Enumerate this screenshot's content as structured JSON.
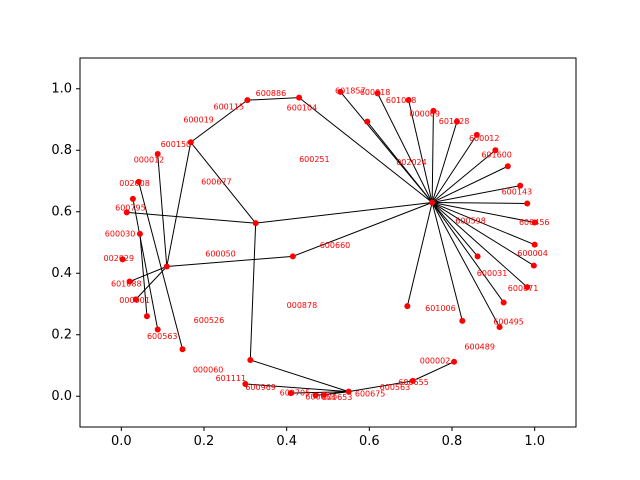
{
  "chart_data": {
    "type": "network",
    "xlim": [
      -0.1,
      1.1
    ],
    "ylim": [
      -0.1,
      1.1
    ],
    "x_ticks": [
      "0.0",
      "0.2",
      "0.4",
      "0.6",
      "0.8",
      "1.0"
    ],
    "y_ticks": [
      "0.0",
      "0.2",
      "0.4",
      "0.6",
      "0.8",
      "1.0"
    ],
    "grid": false,
    "node_color": "#ff0000",
    "edge_color": "#000000",
    "label_color": "#ff0000",
    "nodes": [
      {
        "id": "hub",
        "x": 0.752,
        "y": 0.63
      },
      {
        "id": "nA",
        "x": 0.325,
        "y": 0.563
      },
      {
        "id": "nB",
        "x": 0.168,
        "y": 0.826
      },
      {
        "id": "nC",
        "x": 0.305,
        "y": 0.963
      },
      {
        "id": "nD",
        "x": 0.43,
        "y": 0.971
      },
      {
        "id": "nE",
        "x": 0.11,
        "y": 0.422
      },
      {
        "id": "nF",
        "x": 0.042,
        "y": 0.697
      },
      {
        "id": "nG",
        "x": 0.088,
        "y": 0.788
      },
      {
        "id": "nH",
        "x": 0.013,
        "y": 0.598
      },
      {
        "id": "nI",
        "x": 0.028,
        "y": 0.642
      },
      {
        "id": "nJ",
        "x": 0.045,
        "y": 0.528
      },
      {
        "id": "nK",
        "x": 0.003,
        "y": 0.445
      },
      {
        "id": "nL",
        "x": 0.02,
        "y": 0.373
      },
      {
        "id": "nM",
        "x": 0.035,
        "y": 0.315
      },
      {
        "id": "nN",
        "x": 0.062,
        "y": 0.26
      },
      {
        "id": "nO",
        "x": 0.088,
        "y": 0.217
      },
      {
        "id": "nP",
        "x": 0.148,
        "y": 0.153
      },
      {
        "id": "nQ",
        "x": 0.415,
        "y": 0.455
      },
      {
        "id": "nR",
        "x": 0.312,
        "y": 0.118
      },
      {
        "id": "nS",
        "x": 0.55,
        "y": 0.015
      },
      {
        "id": "nT",
        "x": 0.3,
        "y": 0.04
      },
      {
        "id": "nU",
        "x": 0.41,
        "y": 0.01
      },
      {
        "id": "nV",
        "x": 0.47,
        "y": 0.003
      },
      {
        "id": "nW",
        "x": 0.49,
        "y": 0.005
      },
      {
        "id": "nX",
        "x": 0.705,
        "y": 0.05
      },
      {
        "id": "nY",
        "x": 0.805,
        "y": 0.112
      },
      {
        "id": "n1",
        "x": 0.53,
        "y": 0.99
      },
      {
        "id": "n2",
        "x": 0.595,
        "y": 0.893
      },
      {
        "id": "n3",
        "x": 0.62,
        "y": 0.985
      },
      {
        "id": "n4",
        "x": 0.695,
        "y": 0.963
      },
      {
        "id": "n5",
        "x": 0.755,
        "y": 0.928
      },
      {
        "id": "n6",
        "x": 0.812,
        "y": 0.893
      },
      {
        "id": "n7",
        "x": 0.86,
        "y": 0.85
      },
      {
        "id": "n8",
        "x": 0.905,
        "y": 0.8
      },
      {
        "id": "n9",
        "x": 0.935,
        "y": 0.748
      },
      {
        "id": "n10",
        "x": 0.965,
        "y": 0.685
      },
      {
        "id": "n11",
        "x": 0.982,
        "y": 0.627
      },
      {
        "id": "n12",
        "x": 1.0,
        "y": 0.565
      },
      {
        "id": "n13",
        "x": 1.0,
        "y": 0.493
      },
      {
        "id": "n14",
        "x": 0.998,
        "y": 0.425
      },
      {
        "id": "n15",
        "x": 0.982,
        "y": 0.355
      },
      {
        "id": "n16",
        "x": 0.925,
        "y": 0.305
      },
      {
        "id": "n17",
        "x": 0.915,
        "y": 0.225
      },
      {
        "id": "n18",
        "x": 0.862,
        "y": 0.455
      },
      {
        "id": "n19",
        "x": 0.825,
        "y": 0.245
      },
      {
        "id": "n20",
        "x": 0.692,
        "y": 0.293
      }
    ],
    "edges": [
      [
        "hub",
        "nA"
      ],
      [
        "hub",
        "nQ"
      ],
      [
        "hub",
        "n1"
      ],
      [
        "hub",
        "n2"
      ],
      [
        "hub",
        "n3"
      ],
      [
        "hub",
        "n4"
      ],
      [
        "hub",
        "n5"
      ],
      [
        "hub",
        "n6"
      ],
      [
        "hub",
        "n7"
      ],
      [
        "hub",
        "n8"
      ],
      [
        "hub",
        "n9"
      ],
      [
        "hub",
        "n10"
      ],
      [
        "hub",
        "n11"
      ],
      [
        "hub",
        "n12"
      ],
      [
        "hub",
        "n13"
      ],
      [
        "hub",
        "n14"
      ],
      [
        "hub",
        "n15"
      ],
      [
        "hub",
        "n16"
      ],
      [
        "hub",
        "n17"
      ],
      [
        "hub",
        "n18"
      ],
      [
        "hub",
        "n19"
      ],
      [
        "hub",
        "n20"
      ],
      [
        "nA",
        "nB"
      ],
      [
        "nA",
        "nH"
      ],
      [
        "nA",
        "nR"
      ],
      [
        "nB",
        "nC"
      ],
      [
        "nC",
        "nD"
      ],
      [
        "nD",
        "hub"
      ],
      [
        "nB",
        "nE"
      ],
      [
        "nE",
        "nG"
      ],
      [
        "nE",
        "nM"
      ],
      [
        "nE",
        "nL"
      ],
      [
        "nE",
        "nQ"
      ],
      [
        "nF",
        "nP"
      ],
      [
        "nI",
        "nO"
      ],
      [
        "nJ",
        "nN"
      ],
      [
        "nR",
        "nS"
      ],
      [
        "nS",
        "nT"
      ],
      [
        "nS",
        "nX"
      ],
      [
        "nX",
        "nY"
      ],
      [
        "nS",
        "nU"
      ],
      [
        "nS",
        "nV"
      ],
      [
        "nS",
        "nW"
      ]
    ],
    "labels": [
      {
        "text": "601857",
        "x": 0.517,
        "y": 0.992
      },
      {
        "text": "600018",
        "x": 0.577,
        "y": 0.987
      },
      {
        "text": "601088",
        "x": 0.64,
        "y": 0.961
      },
      {
        "text": "000069",
        "x": 0.697,
        "y": 0.918
      },
      {
        "text": "601628",
        "x": 0.768,
        "y": 0.893
      },
      {
        "text": "600012",
        "x": 0.841,
        "y": 0.838
      },
      {
        "text": "601600",
        "x": 0.871,
        "y": 0.784
      },
      {
        "text": "600143",
        "x": 0.92,
        "y": 0.665
      },
      {
        "text": "600456",
        "x": 0.962,
        "y": 0.565
      },
      {
        "text": "600004",
        "x": 0.958,
        "y": 0.465
      },
      {
        "text": "600031",
        "x": 0.86,
        "y": 0.4
      },
      {
        "text": "600871",
        "x": 0.935,
        "y": 0.35
      },
      {
        "text": "600495",
        "x": 0.9,
        "y": 0.242
      },
      {
        "text": "600489",
        "x": 0.83,
        "y": 0.16
      },
      {
        "text": "601006",
        "x": 0.735,
        "y": 0.285
      },
      {
        "text": "600598",
        "x": 0.808,
        "y": 0.57
      },
      {
        "text": "002024",
        "x": 0.665,
        "y": 0.76
      },
      {
        "text": "600251",
        "x": 0.43,
        "y": 0.77
      },
      {
        "text": "600886",
        "x": 0.325,
        "y": 0.985
      },
      {
        "text": "600104",
        "x": 0.4,
        "y": 0.938
      },
      {
        "text": "600115",
        "x": 0.223,
        "y": 0.94
      },
      {
        "text": "600019",
        "x": 0.15,
        "y": 0.898
      },
      {
        "text": "600150",
        "x": 0.095,
        "y": 0.818
      },
      {
        "text": "000012",
        "x": 0.03,
        "y": 0.768
      },
      {
        "text": "002008",
        "x": -0.005,
        "y": 0.692
      },
      {
        "text": "600677",
        "x": 0.193,
        "y": 0.696
      },
      {
        "text": "600795",
        "x": -0.015,
        "y": 0.612
      },
      {
        "text": "600030",
        "x": -0.04,
        "y": 0.528
      },
      {
        "text": "002029",
        "x": -0.043,
        "y": 0.448
      },
      {
        "text": "601088",
        "x": -0.025,
        "y": 0.365
      },
      {
        "text": "000001",
        "x": -0.005,
        "y": 0.312
      },
      {
        "text": "600563",
        "x": 0.062,
        "y": 0.195
      },
      {
        "text": "600526",
        "x": 0.175,
        "y": 0.247
      },
      {
        "text": "600050",
        "x": 0.203,
        "y": 0.462
      },
      {
        "text": "600660",
        "x": 0.48,
        "y": 0.49
      },
      {
        "text": "000878",
        "x": 0.4,
        "y": 0.295
      },
      {
        "text": "000060",
        "x": 0.173,
        "y": 0.085
      },
      {
        "text": "601111",
        "x": 0.228,
        "y": 0.058
      },
      {
        "text": "600969",
        "x": 0.3,
        "y": 0.028
      },
      {
        "text": "600705",
        "x": 0.383,
        "y": 0.01
      },
      {
        "text": "600653",
        "x": 0.445,
        "y": -0.002
      },
      {
        "text": "600653",
        "x": 0.485,
        "y": -0.004
      },
      {
        "text": "600675",
        "x": 0.565,
        "y": 0.008
      },
      {
        "text": "600563",
        "x": 0.625,
        "y": 0.028
      },
      {
        "text": "600655",
        "x": 0.67,
        "y": 0.045
      },
      {
        "text": "000002",
        "x": 0.722,
        "y": 0.115
      }
    ]
  }
}
